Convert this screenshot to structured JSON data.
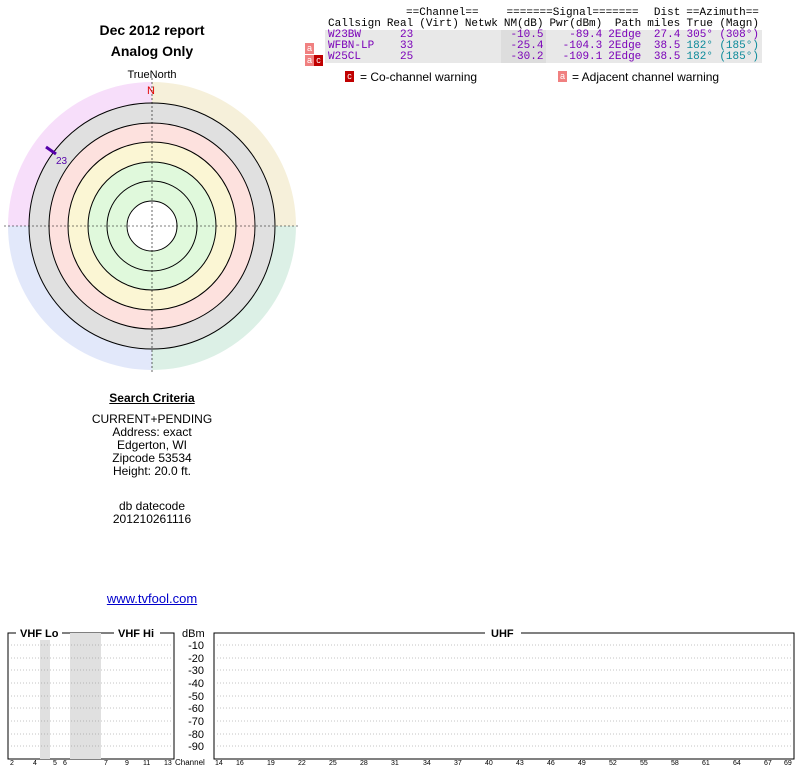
{
  "report": {
    "title_line1": "Dec 2012 report",
    "title_line2": "Analog Only"
  },
  "polar": {
    "north_label": "TrueNorth",
    "n_marker": "N",
    "station_marker": "23"
  },
  "table": {
    "group_headers": {
      "channel": "==Channel==",
      "signal": "=======Signal=======",
      "dist": "Dist",
      "azimuth": "==Azimuth=="
    },
    "headers": [
      "Callsign",
      "Real",
      "(Virt)",
      "Netwk",
      "NM(dB)",
      "Pwr(dBm)",
      "Path",
      "miles",
      "True",
      "(Magn)"
    ],
    "rows": [
      {
        "callsign": "W23BW",
        "real": "23",
        "virt": "",
        "netwk": "",
        "nm": "-10.5",
        "pwr": "-89.4",
        "path": "2Edge",
        "miles": "27.4",
        "true": "305°",
        "magn": "(308°)",
        "flags": ""
      },
      {
        "callsign": "WFBN-LP",
        "real": "33",
        "virt": "",
        "netwk": "",
        "nm": "-25.4",
        "pwr": "-104.3",
        "path": "2Edge",
        "miles": "38.5",
        "true": "182°",
        "magn": "(185°)",
        "flags": "a"
      },
      {
        "callsign": "W25CL",
        "real": "25",
        "virt": "",
        "netwk": "",
        "nm": "-30.2",
        "pwr": "-109.1",
        "path": "2Edge",
        "miles": "38.5",
        "true": "182°",
        "magn": "(185°)",
        "flags": "ac"
      }
    ]
  },
  "legend": {
    "co_icon": "c",
    "co_text": "= Co-channel warning",
    "adj_icon": "a",
    "adj_text": "= Adjacent channel warning"
  },
  "criteria": {
    "heading": "Search Criteria",
    "lines": [
      "CURRENT+PENDING",
      "Address: exact",
      "Edgerton, WI",
      "Zipcode 53534",
      "Height: 20.0 ft."
    ],
    "db_label": "db datecode",
    "db_value": "201210261116"
  },
  "link": "www.tvfool.com",
  "spectrum": {
    "vhf_lo": "VHF Lo",
    "vhf_hi": "VHF Hi",
    "uhf": "UHF",
    "dbm_label": "dBm",
    "channel_label": "Channel",
    "dbm_ticks": [
      "-10",
      "-20",
      "-30",
      "-40",
      "-50",
      "-60",
      "-70",
      "-80",
      "-90"
    ],
    "vhf_ticks": [
      "2",
      "4",
      "5",
      "6",
      "7",
      "9",
      "11",
      "13"
    ],
    "uhf_ticks": [
      "14",
      "16",
      "19",
      "22",
      "25",
      "28",
      "31",
      "34",
      "37",
      "40",
      "43",
      "46",
      "49",
      "52",
      "55",
      "58",
      "61",
      "64",
      "67",
      "69"
    ]
  }
}
